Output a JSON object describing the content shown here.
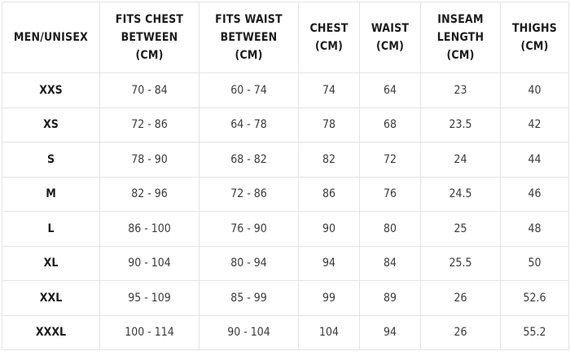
{
  "size_chart": {
    "headers": [
      [
        "MEN/UNISEX"
      ],
      [
        "FITS CHEST",
        "BETWEEN",
        "(CM)"
      ],
      [
        "FITS WAIST",
        "BETWEEN",
        "(CM)"
      ],
      [
        "CHEST",
        "(CM)"
      ],
      [
        "WAIST",
        "(CM)"
      ],
      [
        "INSEAM",
        "LENGTH",
        "(CM)"
      ],
      [
        "THIGHS",
        "(CM)"
      ]
    ],
    "rows": [
      [
        "XXS",
        "70 - 84",
        "60 - 74",
        "74",
        "64",
        "23",
        "40"
      ],
      [
        "XS",
        "72 - 86",
        "64 - 78",
        "78",
        "68",
        "23.5",
        "42"
      ],
      [
        "S",
        "78 - 90",
        "68 - 82",
        "82",
        "72",
        "24",
        "44"
      ],
      [
        "M",
        "82 - 96",
        "72 - 86",
        "86",
        "76",
        "24.5",
        "46"
      ],
      [
        "L",
        "86 - 100",
        "76 - 90",
        "90",
        "80",
        "25",
        "48"
      ],
      [
        "XL",
        "90 - 104",
        "80 - 94",
        "94",
        "84",
        "25.5",
        "50"
      ],
      [
        "XXL",
        "95 - 109",
        "85 - 99",
        "99",
        "89",
        "26",
        "52.6"
      ],
      [
        "XXXL",
        "100 - 114",
        "90 - 104",
        "104",
        "94",
        "26",
        "55.2"
      ]
    ]
  },
  "colors": {
    "border": "#e4e4e4",
    "header_text": "#1c1c1c",
    "cell_text": "#3a3a3a",
    "background": "#ffffff"
  }
}
